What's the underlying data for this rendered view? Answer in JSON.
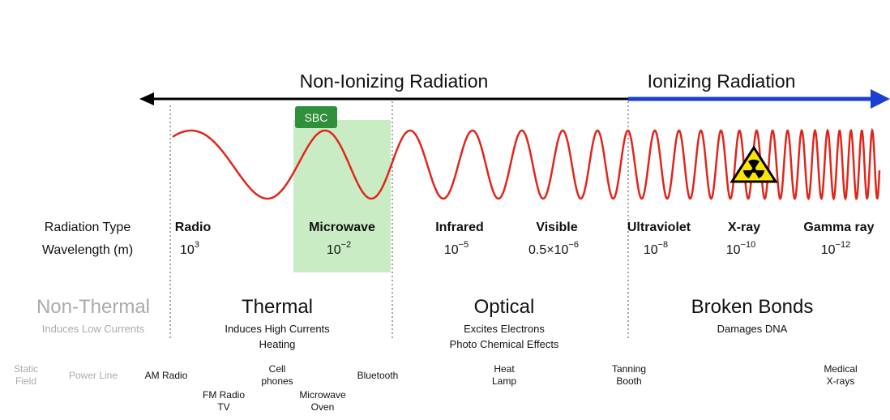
{
  "header": {
    "non_ionizing": "Non-Ionizing Radiation",
    "ionizing": "Ionizing Radiation"
  },
  "badge": "SBC",
  "row_labels": [
    "Radiation Type",
    "Wavelength (m)"
  ],
  "bands": [
    {
      "name": "Radio",
      "base": "10",
      "exp": "3"
    },
    {
      "name": "Microwave",
      "base": "10",
      "exp": "−2"
    },
    {
      "name": "Infrared",
      "base": "10",
      "exp": "−5"
    },
    {
      "name": "Visible",
      "base": "0.5×10",
      "exp": "−6"
    },
    {
      "name": "Ultraviolet",
      "base": "10",
      "exp": "−8"
    },
    {
      "name": "X-ray",
      "base": "10",
      "exp": "−10"
    },
    {
      "name": "Gamma ray",
      "base": "10",
      "exp": "−12"
    }
  ],
  "effects": [
    {
      "title": "Non-Thermal",
      "lines": [
        "Induces Low Currents"
      ]
    },
    {
      "title": "Thermal",
      "lines": [
        "Induces High Currents",
        "Heating"
      ]
    },
    {
      "title": "Optical",
      "lines": [
        "Excites Electrons",
        "Photo Chemical Effects"
      ]
    },
    {
      "title": "Broken Bonds",
      "lines": [
        "Damages DNA"
      ]
    }
  ],
  "sources": [
    {
      "lines": [
        "Static",
        "Field"
      ]
    },
    {
      "lines": [
        "Power Line"
      ]
    },
    {
      "lines": [
        "AM Radio"
      ]
    },
    {
      "lines": [
        "FM Radio",
        "TV"
      ]
    },
    {
      "lines": [
        "Cell",
        "phones"
      ]
    },
    {
      "lines": [
        "Microwave",
        "Oven"
      ]
    },
    {
      "lines": [
        "Bluetooth"
      ]
    },
    {
      "lines": [
        "Heat",
        "Lamp"
      ]
    },
    {
      "lines": [
        "Tanning",
        "Booth"
      ]
    },
    {
      "lines": [
        "Medical",
        "X-rays"
      ]
    }
  ]
}
